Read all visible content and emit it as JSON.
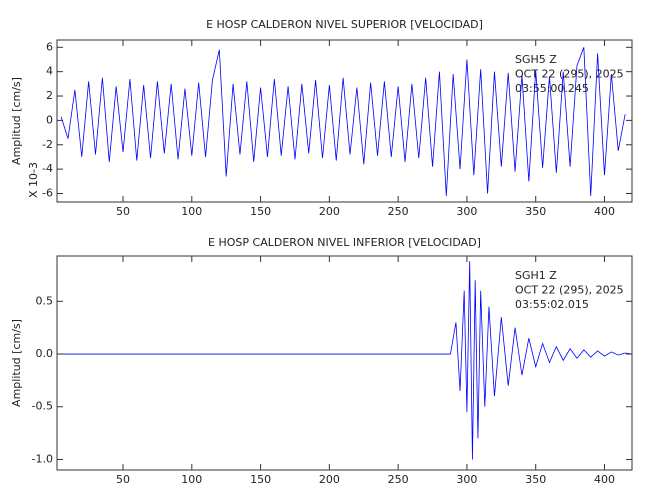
{
  "chart_data": [
    {
      "type": "line",
      "title": "E HOSP CALDERON NIVEL SUPERIOR [VELOCIDAD]",
      "ylabel": "Amplitud [cm/s]",
      "y_multiplier_label": "X 10-3",
      "annotations": [
        "SGH5   Z",
        "OCT 22 (295), 2025",
        "03:55:00.245"
      ],
      "xlim": [
        2,
        420
      ],
      "xticks": [
        50,
        100,
        150,
        200,
        250,
        300,
        350,
        400
      ],
      "ylim": [
        -6.7,
        6.6
      ],
      "yticks": [
        6,
        4,
        2,
        0,
        -2,
        -4,
        -6
      ],
      "x": [
        5,
        10,
        15,
        20,
        25,
        30,
        35,
        40,
        45,
        50,
        55,
        60,
        65,
        70,
        75,
        80,
        85,
        90,
        95,
        100,
        105,
        110,
        115,
        120,
        125,
        130,
        135,
        140,
        145,
        150,
        155,
        160,
        165,
        170,
        175,
        180,
        185,
        190,
        195,
        200,
        205,
        210,
        215,
        220,
        225,
        230,
        235,
        240,
        245,
        250,
        255,
        260,
        265,
        270,
        275,
        280,
        285,
        290,
        295,
        300,
        305,
        310,
        315,
        320,
        325,
        330,
        335,
        340,
        345,
        350,
        355,
        360,
        365,
        370,
        375,
        380,
        385,
        390,
        395,
        400,
        405,
        410,
        415
      ],
      "series": [
        {
          "color": "#0000ff",
          "values": [
            0.3,
            -1.5,
            2.5,
            -3,
            3.2,
            -2.8,
            3.5,
            -3.4,
            2.8,
            -2.6,
            3.4,
            -3.3,
            2.9,
            -3.1,
            3.2,
            -2.7,
            3.0,
            -3.2,
            2.6,
            -2.9,
            3.1,
            -3.0,
            3.3,
            5.8,
            -4.6,
            3.0,
            -2.8,
            3.2,
            -3.4,
            2.7,
            -3.0,
            3.4,
            -2.9,
            2.8,
            -3.2,
            3.0,
            -2.7,
            3.3,
            -3.1,
            2.9,
            -3.3,
            3.5,
            -2.8,
            2.7,
            -3.6,
            3.1,
            -2.9,
            3.2,
            -3.0,
            2.8,
            -3.4,
            3.0,
            -3.1,
            3.5,
            -3.8,
            4.0,
            -6.2,
            3.8,
            -4.0,
            5.0,
            -4.5,
            4.2,
            -6.0,
            4.0,
            -3.8,
            3.9,
            -4.2,
            3.7,
            -5.0,
            4.1,
            -3.9,
            3.6,
            -4.3,
            4.0,
            -3.8,
            4.5,
            6.0,
            -6.2,
            5.5,
            -4.5,
            3.8,
            -2.5,
            0.5
          ]
        }
      ]
    },
    {
      "type": "line",
      "title": "E HOSP CALDERON NIVEL INFERIOR [VELOCIDAD]",
      "ylabel": "Amplitud [cm/s]",
      "annotations": [
        "SGH1   Z",
        "OCT 22 (295), 2025",
        "03:55:02.015"
      ],
      "xlim": [
        2,
        420
      ],
      "xticks": [
        50,
        100,
        150,
        200,
        250,
        300,
        350,
        400
      ],
      "ylim": [
        -1.1,
        0.93
      ],
      "yticks": [
        0.5,
        {
          "value": 0,
          "label": "0.0"
        },
        -0.5,
        {
          "value": -1,
          "label": "-1.0"
        }
      ],
      "x": [
        2,
        288,
        292,
        295,
        298,
        300,
        302,
        304,
        306,
        308,
        310,
        313,
        316,
        320,
        325,
        330,
        335,
        340,
        345,
        350,
        355,
        360,
        365,
        370,
        375,
        380,
        385,
        390,
        395,
        400,
        405,
        410,
        415,
        420
      ],
      "series": [
        {
          "color": "#0000ff",
          "values": [
            0,
            0,
            0.3,
            -0.35,
            0.6,
            -0.55,
            0.88,
            -1.0,
            0.7,
            -0.8,
            0.6,
            -0.5,
            0.45,
            -0.4,
            0.35,
            -0.3,
            0.25,
            -0.2,
            0.15,
            -0.12,
            0.1,
            -0.08,
            0.07,
            -0.06,
            0.05,
            -0.04,
            0.04,
            -0.03,
            0.03,
            -0.02,
            0.02,
            -0.01,
            0.01,
            0
          ]
        }
      ]
    }
  ]
}
